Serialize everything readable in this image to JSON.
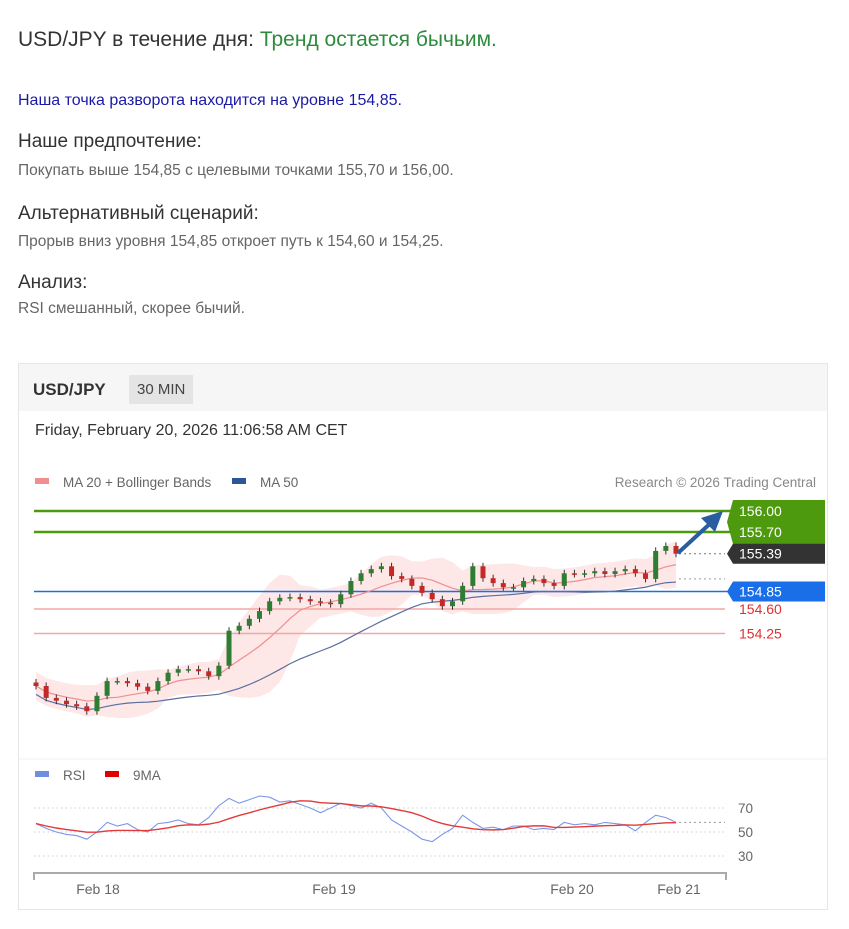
{
  "article": {
    "title_prefix": "USD/JPY в течение дня: ",
    "title_trend": "Тренд остается бычьим.",
    "pivot": "Наша точка разворота находится на уровне 154,85.",
    "sections": [
      {
        "heading": "Наше предпочтение:",
        "text": "Покупать выше 154,85 с целевыми точками 155,70 и 156,00."
      },
      {
        "heading": "Альтернативный сценарий:",
        "text": "Прорыв вниз уровня 154,85 откроет путь к 154,60 и 154,25."
      },
      {
        "heading": "Анализ:",
        "text": "RSI смешанный, скорее бычий."
      }
    ]
  },
  "chart_header": {
    "symbol": "USD/JPY",
    "timeframe": "30 MIN",
    "datetime": "Friday, February 20, 2026 11:06:58 AM CET",
    "legend": [
      {
        "label": "MA 20 + Bollinger Bands",
        "color": "#f08f8f"
      },
      {
        "label": "MA 50",
        "color": "#2b5797"
      }
    ],
    "copyright": "Research © 2026 Trading Central",
    "rsi_legend": [
      {
        "label": "RSI",
        "color": "#6f8ee0"
      },
      {
        "label": "9MA",
        "color": "#e00000"
      }
    ]
  },
  "chart_data": {
    "type": "candlestick",
    "price_ylim": [
      152.7,
      156.2
    ],
    "closes": [
      153.5,
      153.33,
      153.29,
      153.24,
      153.21,
      153.14,
      153.36,
      153.57,
      153.57,
      153.54,
      153.49,
      153.43,
      153.57,
      153.69,
      153.74,
      153.74,
      153.71,
      153.64,
      153.79,
      154.29,
      154.36,
      154.46,
      154.57,
      154.71,
      154.76,
      154.77,
      154.74,
      154.71,
      154.69,
      154.67,
      154.81,
      155.0,
      155.11,
      155.17,
      155.21,
      155.07,
      155.03,
      154.93,
      154.83,
      154.74,
      154.64,
      154.71,
      154.93,
      155.21,
      155.04,
      154.97,
      154.91,
      154.91,
      155.0,
      155.03,
      154.97,
      154.93,
      155.11,
      155.1,
      155.11,
      155.14,
      155.1,
      155.14,
      155.17,
      155.11,
      155.03,
      155.43,
      155.5,
      155.39
    ],
    "levels": [
      {
        "label": "156.00",
        "value": 156.0,
        "type": "target",
        "color": "#4e9a0e"
      },
      {
        "label": "155.70",
        "value": 155.7,
        "type": "target",
        "color": "#4e9a0e"
      },
      {
        "label": "155.39",
        "value": 155.39,
        "type": "last",
        "color": "#333333"
      },
      {
        "label": "154.85",
        "value": 154.85,
        "type": "pivot",
        "color": "#1a6fe8"
      },
      {
        "label": "154.60",
        "value": 154.6,
        "type": "support",
        "color": "#e03030"
      },
      {
        "label": "154.25",
        "value": 154.25,
        "type": "support",
        "color": "#e03030"
      }
    ],
    "rsi": [
      57,
      53,
      50,
      48,
      47,
      44,
      50,
      58,
      55,
      57,
      52,
      50,
      57,
      58,
      60,
      57,
      56,
      62,
      72,
      78,
      74,
      77,
      80,
      79,
      75,
      76,
      73,
      70,
      66,
      70,
      74,
      72,
      70,
      74,
      70,
      60,
      55,
      50,
      44,
      42,
      48,
      53,
      64,
      58,
      53,
      54,
      52,
      55,
      55,
      52,
      53,
      52,
      58,
      56,
      57,
      56,
      58,
      57,
      56,
      51,
      58,
      64,
      62,
      58
    ],
    "rsi_ticks": [
      "70",
      "50",
      "30"
    ],
    "x_ticks": [
      "Feb 18",
      "Feb 19",
      "Feb 20",
      "Feb 21"
    ],
    "up_color": "#2e7d32",
    "down_color": "#c62828"
  }
}
